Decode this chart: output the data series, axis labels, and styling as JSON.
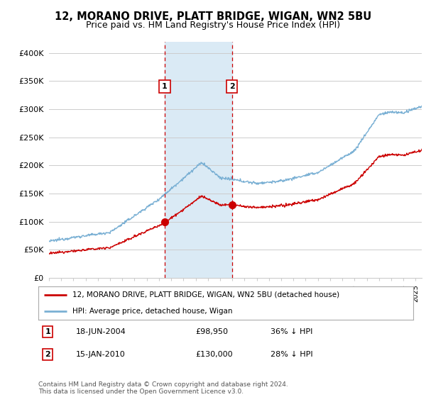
{
  "title": "12, MORANO DRIVE, PLATT BRIDGE, WIGAN, WN2 5BU",
  "subtitle": "Price paid vs. HM Land Registry's House Price Index (HPI)",
  "title_fontsize": 10.5,
  "subtitle_fontsize": 9,
  "ylim": [
    0,
    420000
  ],
  "yticks": [
    0,
    50000,
    100000,
    150000,
    200000,
    250000,
    300000,
    350000,
    400000
  ],
  "ytick_labels": [
    "£0",
    "£50K",
    "£100K",
    "£150K",
    "£200K",
    "£250K",
    "£300K",
    "£350K",
    "£400K"
  ],
  "xmin": 1995,
  "xmax": 2025.5,
  "sale1_date": 2004.46,
  "sale1_price": 98950,
  "sale1_label": "1",
  "sale2_date": 2009.96,
  "sale2_price": 130000,
  "sale2_label": "2",
  "legend_line1": "12, MORANO DRIVE, PLATT BRIDGE, WIGAN, WN2 5BU (detached house)",
  "legend_line2": "HPI: Average price, detached house, Wigan",
  "footer": "Contains HM Land Registry data © Crown copyright and database right 2024.\nThis data is licensed under the Open Government Licence v3.0.",
  "line_color_red": "#cc0000",
  "line_color_blue": "#7ab0d4",
  "shade_color": "#daeaf5",
  "vline_color": "#cc0000",
  "background_color": "#ffffff",
  "grid_color": "#cccccc",
  "label_box_color": "#cc0000"
}
